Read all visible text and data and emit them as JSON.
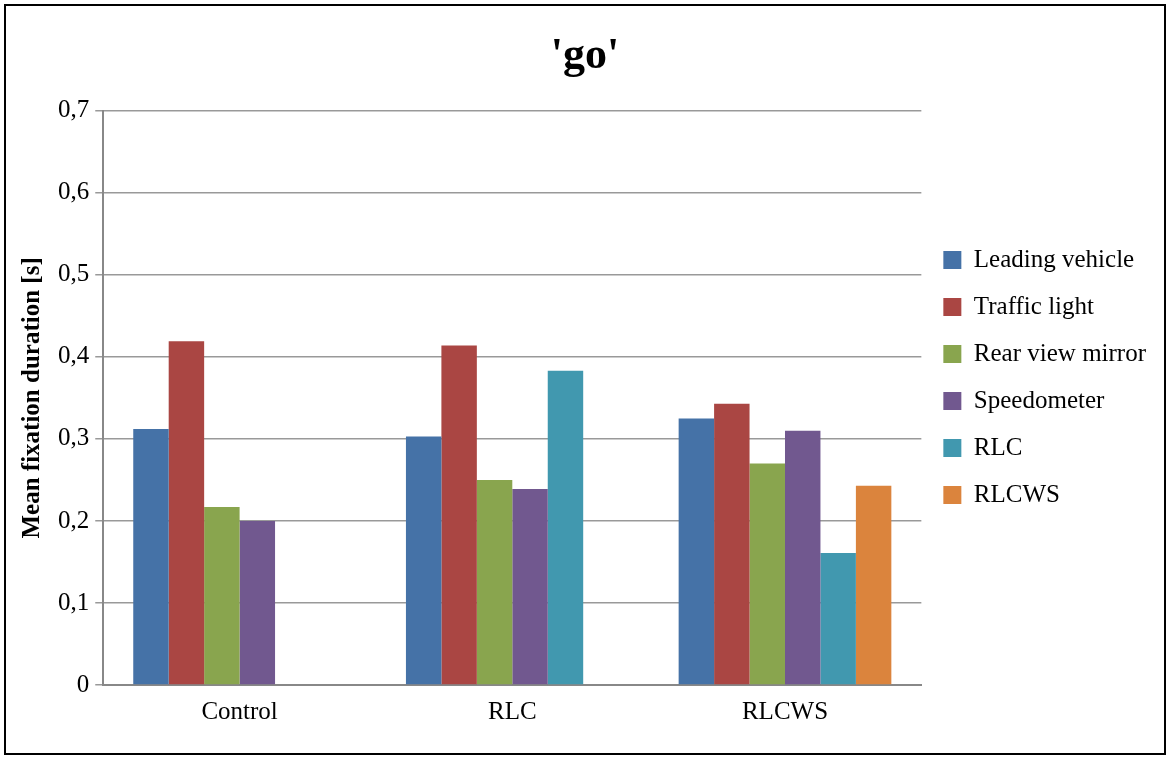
{
  "chart_data": {
    "type": "bar",
    "title": "'go'",
    "ylabel": "Mean fixation duration [s]",
    "categories": [
      "Control",
      "RLC",
      "RLCWS"
    ],
    "series": [
      {
        "name": "Leading vehicle",
        "color": "#4572a7",
        "values": [
          0.312,
          0.303,
          0.325
        ]
      },
      {
        "name": "Traffic light",
        "color": "#aa4643",
        "values": [
          0.419,
          0.414,
          0.343
        ]
      },
      {
        "name": "Rear view mirror",
        "color": "#89a54e",
        "values": [
          0.217,
          0.25,
          0.27
        ]
      },
      {
        "name": "Speedometer",
        "color": "#71588f",
        "values": [
          0.2,
          0.239,
          0.31
        ]
      },
      {
        "name": "RLC",
        "color": "#4198af",
        "values": [
          null,
          0.383,
          0.161
        ]
      },
      {
        "name": "RLCWS",
        "color": "#db843d",
        "values": [
          null,
          null,
          0.243
        ]
      }
    ],
    "ylim": [
      0,
      0.7
    ],
    "yticks": [
      {
        "value": 0,
        "label": "0"
      },
      {
        "value": 0.1,
        "label": "0,1"
      },
      {
        "value": 0.2,
        "label": "0,2"
      },
      {
        "value": 0.3,
        "label": "0,3"
      },
      {
        "value": 0.4,
        "label": "0,4"
      },
      {
        "value": 0.5,
        "label": "0,5"
      },
      {
        "value": 0.6,
        "label": "0,6"
      },
      {
        "value": 0.7,
        "label": "0,7"
      }
    ],
    "grid": "y",
    "legend": "right"
  }
}
